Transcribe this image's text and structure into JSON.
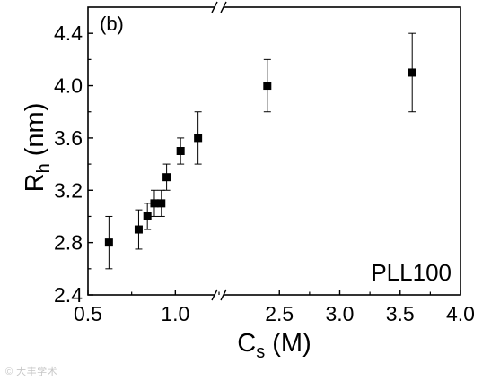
{
  "chart_data": {
    "type": "scatter",
    "panel_label": "(b)",
    "annotation": "PLL100",
    "xlabel": {
      "main": "C",
      "sub": "s",
      "units": " (M)"
    },
    "ylabel": {
      "main": "R",
      "sub": "h",
      "units": " (nm)"
    },
    "xlim_left": [
      0.5,
      1.25
    ],
    "xlim_right": [
      2.0,
      4.0
    ],
    "axis_break": "x",
    "ylim": [
      2.4,
      4.6
    ],
    "grid": false,
    "legend": "none",
    "marker_color": "#000000",
    "x_ticks_left": [
      0.5,
      1.0
    ],
    "x_tick_labels_left": [
      "0.5",
      "1.0"
    ],
    "x_ticks_right": [
      2.5,
      3.0,
      3.5,
      4.0
    ],
    "x_tick_labels_right": [
      "2.5",
      "3.0",
      "3.5",
      "4.0"
    ],
    "y_ticks": [
      2.4,
      2.8,
      3.2,
      3.6,
      4.0,
      4.4
    ],
    "y_tick_labels": [
      "2.4",
      "2.8",
      "3.2",
      "3.6",
      "4.0",
      "4.4"
    ],
    "points": [
      {
        "x": 0.62,
        "y": 2.8,
        "err": 0.2
      },
      {
        "x": 0.79,
        "y": 2.9,
        "err": 0.15
      },
      {
        "x": 0.84,
        "y": 3.0,
        "err": 0.1
      },
      {
        "x": 0.88,
        "y": 3.1,
        "err": 0.1
      },
      {
        "x": 0.92,
        "y": 3.1,
        "err": 0.1
      },
      {
        "x": 0.95,
        "y": 3.3,
        "err": 0.1
      },
      {
        "x": 1.03,
        "y": 3.5,
        "err": 0.1
      },
      {
        "x": 1.13,
        "y": 3.6,
        "err": 0.2
      },
      {
        "x": 2.4,
        "y": 4.0,
        "err": 0.2
      },
      {
        "x": 3.6,
        "y": 4.1,
        "err": 0.3
      }
    ]
  },
  "watermark": "© 大丰学术"
}
